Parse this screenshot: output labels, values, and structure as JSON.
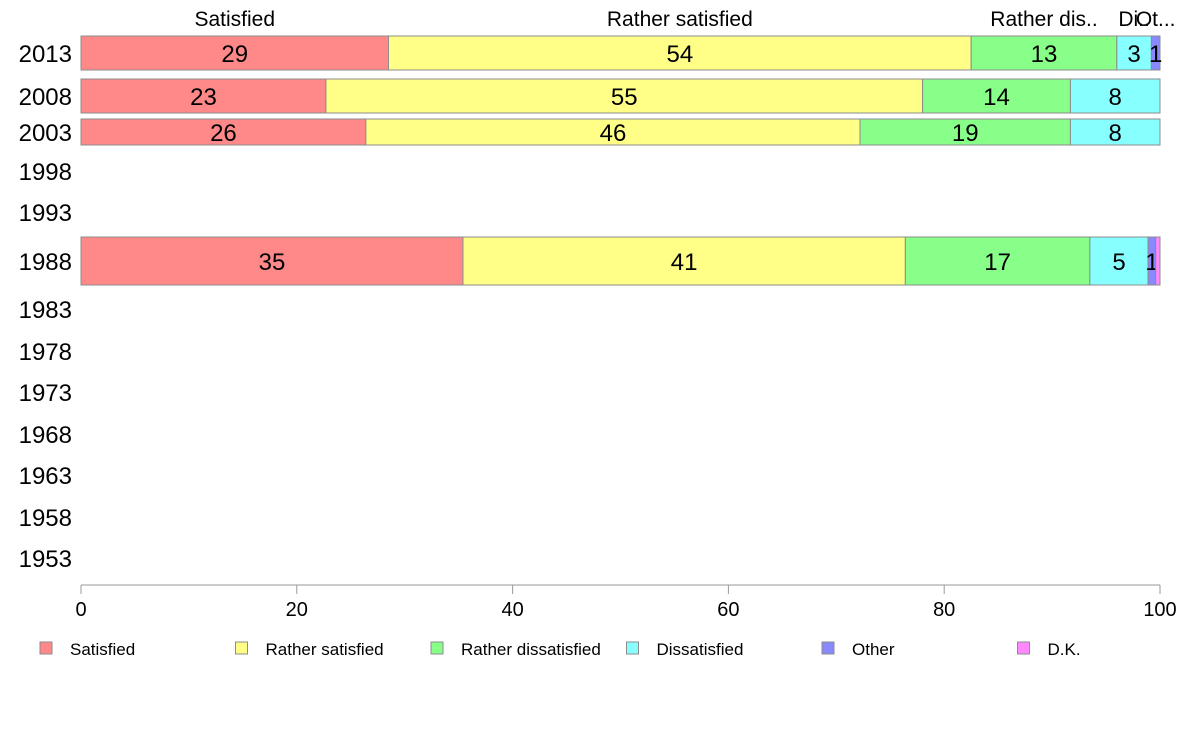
{
  "chart_data": {
    "type": "bar",
    "orientation": "horizontal",
    "stacked": true,
    "categories": [
      "2013",
      "2008",
      "2003",
      "1998",
      "1993",
      "1988",
      "1983",
      "1978",
      "1973",
      "1968",
      "1963",
      "1958",
      "1953"
    ],
    "series": [
      {
        "name": "Satisfied",
        "color": "#ff8888",
        "values": [
          28.5,
          22.7,
          26.4,
          null,
          null,
          35.4,
          null,
          null,
          null,
          null,
          null,
          null,
          null
        ],
        "labels": [
          "29",
          "23",
          "26",
          "",
          "",
          "35",
          "",
          "",
          "",
          "",
          "",
          "",
          ""
        ]
      },
      {
        "name": "Rather satisfied",
        "color": "#ffff88",
        "values": [
          54.0,
          55.3,
          45.8,
          null,
          null,
          41.0,
          null,
          null,
          null,
          null,
          null,
          null,
          null
        ],
        "labels": [
          "54",
          "55",
          "46",
          "",
          "",
          "41",
          "",
          "",
          "",
          "",
          "",
          "",
          ""
        ]
      },
      {
        "name": "Rather dissatisfied",
        "color": "#88ff88",
        "values": [
          13.5,
          13.7,
          19.5,
          null,
          null,
          17.1,
          null,
          null,
          null,
          null,
          null,
          null,
          null
        ],
        "labels": [
          "13",
          "14",
          "19",
          "",
          "",
          "17",
          "",
          "",
          "",
          "",
          "",
          "",
          ""
        ]
      },
      {
        "name": "Dissatisfied",
        "color": "#88ffff",
        "values": [
          3.2,
          8.3,
          8.3,
          null,
          null,
          5.4,
          null,
          null,
          null,
          null,
          null,
          null,
          null
        ],
        "labels": [
          "3",
          "8",
          "8",
          "",
          "",
          "5",
          "",
          "",
          "",
          "",
          "",
          "",
          ""
        ]
      },
      {
        "name": "Other",
        "color": "#8888ff",
        "values": [
          0.8,
          0,
          0,
          null,
          null,
          0.7,
          null,
          null,
          null,
          null,
          null,
          null,
          null
        ],
        "labels": [
          "1",
          "",
          "",
          "",
          "",
          "1",
          "",
          "",
          "",
          "",
          "",
          "",
          ""
        ]
      },
      {
        "name": "D.K.",
        "color": "#ff88ff",
        "values": [
          0,
          0,
          0,
          null,
          null,
          0.4,
          null,
          null,
          null,
          null,
          null,
          null,
          null
        ],
        "labels": [
          "",
          "",
          "",
          "",
          "",
          "",
          "",
          "",
          "",
          "",
          "",
          "",
          ""
        ]
      }
    ],
    "top_labels": [
      "Satisfied",
      "Rather satisfied",
      "Rather dis..",
      "Di..",
      "Ot..."
    ],
    "xlim": [
      0,
      100
    ],
    "x_ticks": [
      "0",
      "20",
      "40",
      "60",
      "80",
      "100"
    ],
    "grid": false,
    "legend_position": "bottom"
  }
}
